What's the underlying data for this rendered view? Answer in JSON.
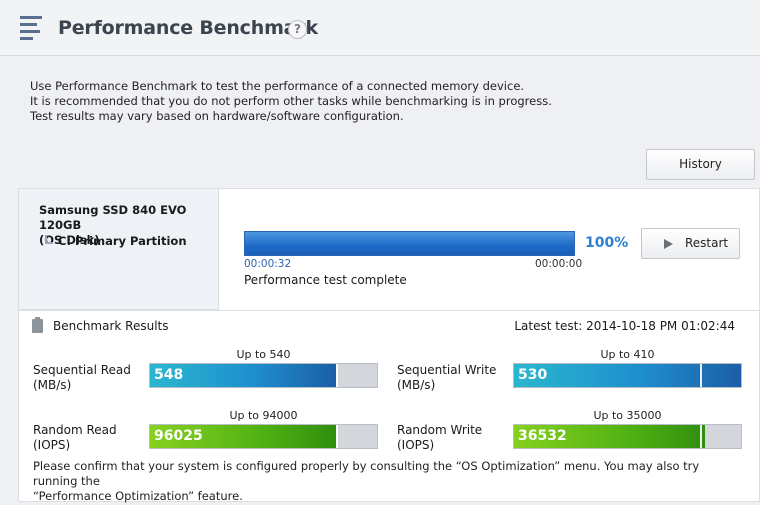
{
  "header": {
    "title": "Performance Benchmark",
    "help": "?"
  },
  "intro": [
    "Use Performance Benchmark to test the performance of a connected memory device.",
    "It is recommended that you do not perform other tasks while benchmarking is in progress.",
    "Test results may vary based on hardware/software configuration."
  ],
  "history_label": "History",
  "disk": {
    "name": "Samsung SSD 840 EVO 120GB",
    "type": "(OS Disk)",
    "partition": "C: Primary Partition"
  },
  "progress": {
    "percent_label": "100%",
    "fraction": 1.0,
    "elapsed": "00:00:32",
    "remaining": "00:00:00",
    "status": "Performance test complete"
  },
  "restart_label": "Restart",
  "results": {
    "title": "Benchmark Results",
    "latest": "Latest test: 2014-10-18 PM 01:02:44"
  },
  "metrics": {
    "seq_read": {
      "label1": "Sequential Read",
      "label2": "(MB/s)",
      "upto": "Up to 540",
      "value": "548",
      "fill": 0.82,
      "mark": 0.82
    },
    "seq_write": {
      "label1": "Sequential Write",
      "label2": "(MB/s)",
      "upto": "Up to 410",
      "value": "530",
      "fill": 1.0,
      "mark": 0.82
    },
    "rand_read": {
      "label1": "Random Read",
      "label2": "(IOPS)",
      "upto": "Up to 94000",
      "value": "96025",
      "fill": 0.82,
      "mark": 0.82
    },
    "rand_write": {
      "label1": "Random Write",
      "label2": "(IOPS)",
      "upto": "Up to 35000",
      "value": "36532",
      "fill": 0.84,
      "mark": 0.82
    }
  },
  "footnote": [
    "Please confirm that your system is configured properly by consulting the “OS Optimization” menu. You may also try running the",
    "“Performance Optimization” feature."
  ],
  "colors": {
    "accent": "#2b7fd4",
    "progress": "#1d6ac8",
    "blue_bar": "#1e8fcd",
    "green_bar": "#55b514"
  }
}
